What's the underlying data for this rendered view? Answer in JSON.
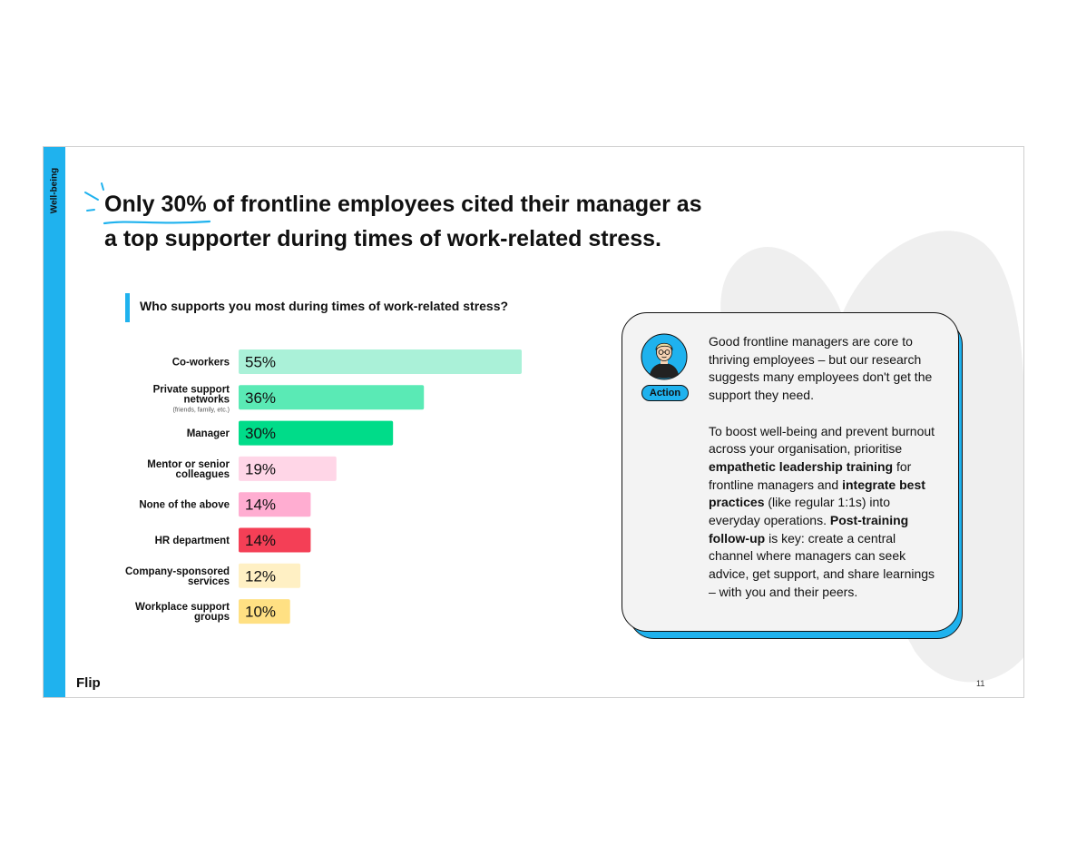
{
  "sidebar": {
    "section_label": "Well-being"
  },
  "title": {
    "highlight": "Only 30%",
    "line1_rest": " of frontline employees cited their manager as",
    "line2": "a top supporter during times of work-related stress."
  },
  "colors": {
    "accent": "#1fb2ee",
    "bars": [
      "#aaf1d8",
      "#5aeab5",
      "#00dc89",
      "#ffd6e7",
      "#ffadd1",
      "#f43f56",
      "#fff0c4",
      "#ffe083"
    ]
  },
  "chart_data": {
    "type": "bar",
    "orientation": "horizontal",
    "title": "Who supports you most during times of work-related stress?",
    "categories": [
      {
        "label": [
          "Co-workers"
        ],
        "note": ""
      },
      {
        "label": [
          "Private support",
          "networks"
        ],
        "note": "(friends, family, etc.)"
      },
      {
        "label": [
          "Manager"
        ],
        "note": ""
      },
      {
        "label": [
          "Mentor or senior",
          "colleagues"
        ],
        "note": ""
      },
      {
        "label": [
          "None of the above"
        ],
        "note": ""
      },
      {
        "label": [
          "HR department"
        ],
        "note": ""
      },
      {
        "label": [
          "Company-sponsored",
          "services"
        ],
        "note": ""
      },
      {
        "label": [
          "Workplace support",
          "groups"
        ],
        "note": ""
      }
    ],
    "values": [
      55,
      36,
      30,
      19,
      14,
      14,
      12,
      10
    ],
    "value_labels": [
      "55%",
      "36%",
      "30%",
      "19%",
      "14%",
      "14%",
      "12%",
      "10%"
    ],
    "xlim": [
      0,
      55
    ],
    "grid": false,
    "legend": "none"
  },
  "action_card": {
    "badge": "Action",
    "paragraph1": "Good frontline managers are core to thriving employees – but our research suggests many employees don't get the support they need.",
    "p2_a": "To boost well-being and prevent burnout across your organisation, prioritise ",
    "p2_b": "empathetic leadership training",
    "p2_c": " for frontline managers and ",
    "p2_d": "integrate best practices",
    "p2_e": " (like regular 1:1s) into everyday operations. ",
    "p2_f": "Post-training follow-up",
    "p2_g": " is key: create a central channel where managers can seek advice, get support, and share learnings – with you and their peers."
  },
  "footer": {
    "logo": "Flip",
    "page_number": "11"
  }
}
